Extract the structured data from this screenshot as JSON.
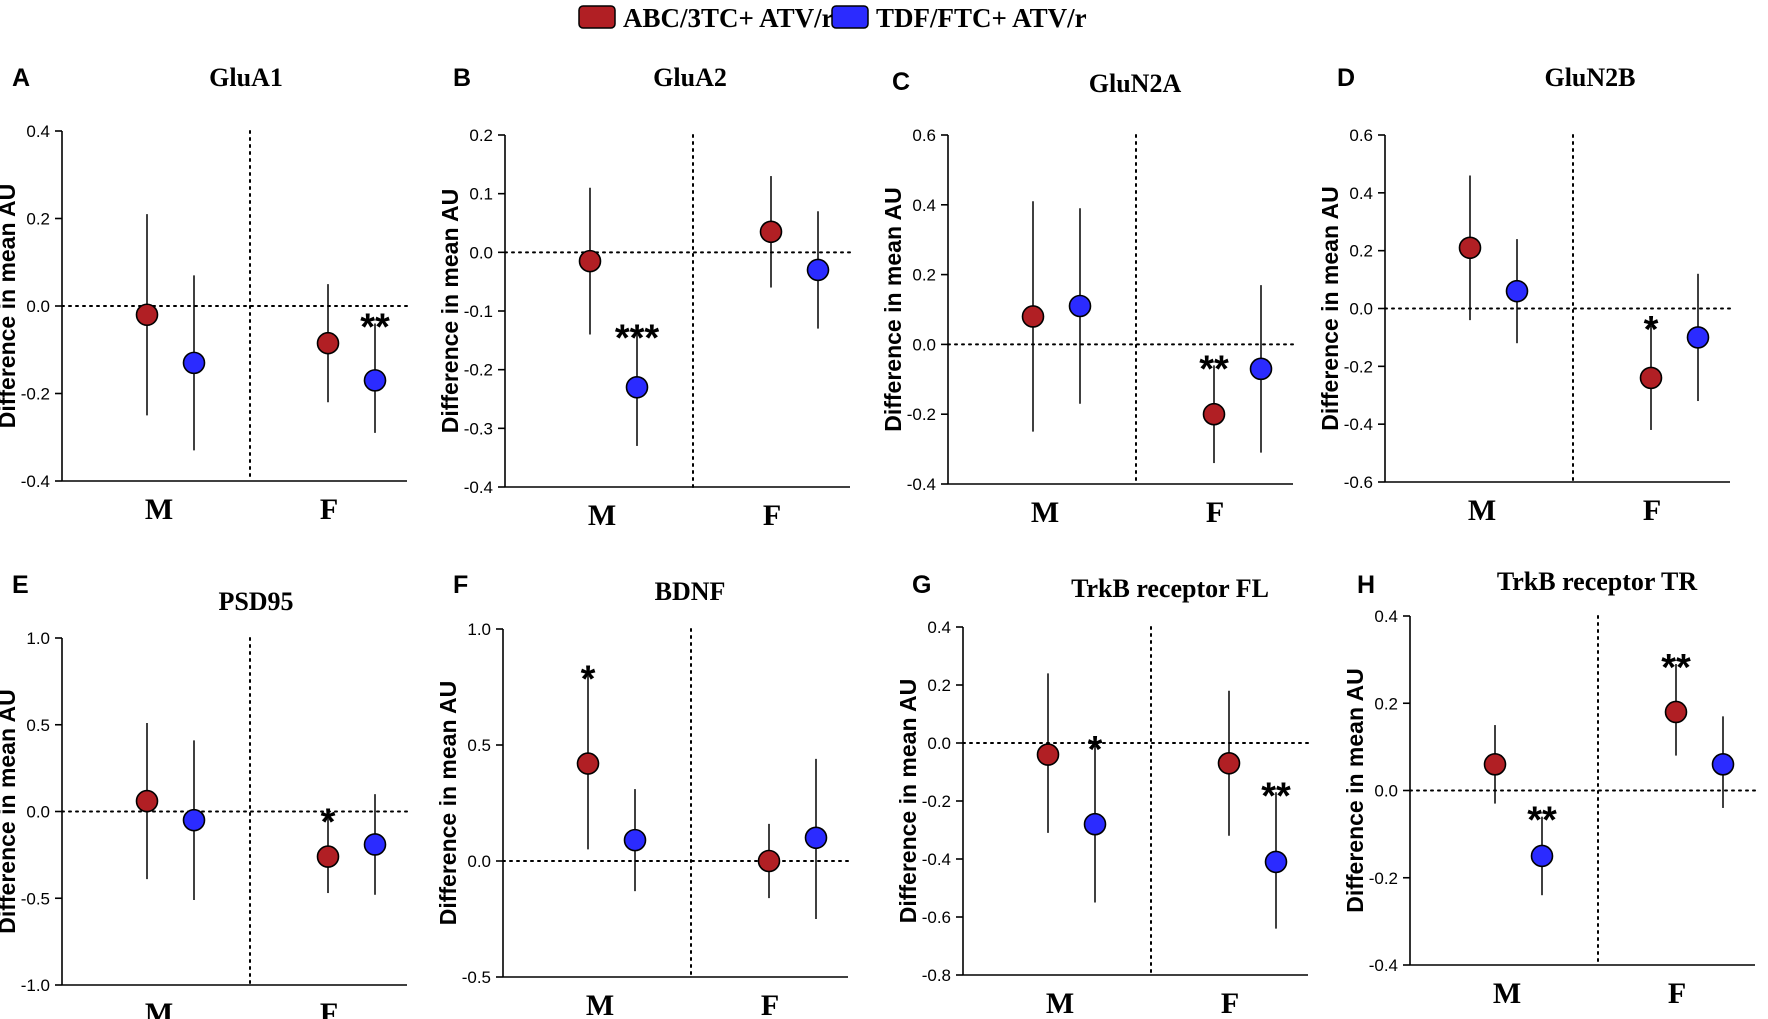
{
  "legend": [
    {
      "label": "ABC/3TC+ ATV/r",
      "color": "#b11f24"
    },
    {
      "label": "TDF/FTC+ ATV/r",
      "color": "#2b2bff"
    }
  ],
  "colors": {
    "red": "#b11f24",
    "blue": "#2b2bff"
  },
  "ylabel": "Difference in mean AU",
  "groups": [
    "M",
    "F"
  ],
  "chart_data": [
    {
      "type": "scatter",
      "letter": "A",
      "title": "GluA1",
      "ylim": [
        -0.4,
        0.4
      ],
      "ticks": [
        -0.4,
        -0.2,
        0.0,
        0.2,
        0.4
      ],
      "tick_labels": [
        "-0.4",
        "-0.2",
        "0.0",
        "0.2",
        "0.4"
      ],
      "points": [
        {
          "group": "M",
          "series": "ABC/3TC+ ATV/r",
          "mean": -0.02,
          "lo": -0.25,
          "hi": 0.21,
          "sig": ""
        },
        {
          "group": "M",
          "series": "TDF/FTC+ ATV/r",
          "mean": -0.13,
          "lo": -0.33,
          "hi": 0.07,
          "sig": ""
        },
        {
          "group": "F",
          "series": "ABC/3TC+ ATV/r",
          "mean": -0.085,
          "lo": -0.22,
          "hi": 0.05,
          "sig": ""
        },
        {
          "group": "F",
          "series": "TDF/FTC+ ATV/r",
          "mean": -0.17,
          "lo": -0.29,
          "hi": -0.04,
          "sig": "**"
        }
      ]
    },
    {
      "type": "scatter",
      "letter": "B",
      "title": "GluA2",
      "ylim": [
        -0.4,
        0.2
      ],
      "ticks": [
        -0.4,
        -0.3,
        -0.2,
        -0.1,
        0.0,
        0.1,
        0.2
      ],
      "tick_labels": [
        "-0.4",
        "-0.3",
        "-0.2",
        "-0.1",
        "0.0",
        "0.1",
        "0.2"
      ],
      "points": [
        {
          "group": "M",
          "series": "ABC/3TC+ ATV/r",
          "mean": -0.015,
          "lo": -0.14,
          "hi": 0.11,
          "sig": ""
        },
        {
          "group": "M",
          "series": "TDF/FTC+ ATV/r",
          "mean": -0.23,
          "lo": -0.33,
          "hi": -0.14,
          "sig": "***"
        },
        {
          "group": "F",
          "series": "ABC/3TC+ ATV/r",
          "mean": 0.035,
          "lo": -0.06,
          "hi": 0.13,
          "sig": ""
        },
        {
          "group": "F",
          "series": "TDF/FTC+ ATV/r",
          "mean": -0.03,
          "lo": -0.13,
          "hi": 0.07,
          "sig": ""
        }
      ]
    },
    {
      "type": "scatter",
      "letter": "C",
      "title": "GluN2A",
      "ylim": [
        -0.4,
        0.6
      ],
      "ticks": [
        -0.4,
        -0.2,
        0.0,
        0.2,
        0.4,
        0.6
      ],
      "tick_labels": [
        "-0.4",
        "-0.2",
        "0.0",
        "0.2",
        "0.4",
        "0.6"
      ],
      "points": [
        {
          "group": "M",
          "series": "ABC/3TC+ ATV/r",
          "mean": 0.08,
          "lo": -0.25,
          "hi": 0.41,
          "sig": ""
        },
        {
          "group": "M",
          "series": "TDF/FTC+ ATV/r",
          "mean": 0.11,
          "lo": -0.17,
          "hi": 0.39,
          "sig": ""
        },
        {
          "group": "F",
          "series": "ABC/3TC+ ATV/r",
          "mean": -0.2,
          "lo": -0.34,
          "hi": -0.06,
          "sig": "**"
        },
        {
          "group": "F",
          "series": "TDF/FTC+ ATV/r",
          "mean": -0.07,
          "lo": -0.31,
          "hi": 0.17,
          "sig": ""
        }
      ]
    },
    {
      "type": "scatter",
      "letter": "D",
      "title": "GluN2B",
      "ylim": [
        -0.6,
        0.6
      ],
      "ticks": [
        -0.6,
        -0.4,
        -0.2,
        0.0,
        0.2,
        0.4,
        0.6
      ],
      "tick_labels": [
        "-0.6",
        "-0.4",
        "-0.2",
        "0.0",
        "0.2",
        "0.4",
        "0.6"
      ],
      "points": [
        {
          "group": "M",
          "series": "ABC/3TC+ ATV/r",
          "mean": 0.21,
          "lo": -0.04,
          "hi": 0.46,
          "sig": ""
        },
        {
          "group": "M",
          "series": "TDF/FTC+ ATV/r",
          "mean": 0.06,
          "lo": -0.12,
          "hi": 0.24,
          "sig": ""
        },
        {
          "group": "F",
          "series": "ABC/3TC+ ATV/r",
          "mean": -0.24,
          "lo": -0.42,
          "hi": -0.06,
          "sig": "*"
        },
        {
          "group": "F",
          "series": "TDF/FTC+ ATV/r",
          "mean": -0.1,
          "lo": -0.32,
          "hi": 0.12,
          "sig": ""
        }
      ]
    },
    {
      "type": "scatter",
      "letter": "E",
      "title": "PSD95",
      "ylim": [
        -1.0,
        1.0
      ],
      "ticks": [
        -1.0,
        -0.5,
        0.0,
        0.5,
        1.0
      ],
      "tick_labels": [
        "-1.0",
        "-0.5",
        "0.0",
        "0.5",
        "1.0"
      ],
      "points": [
        {
          "group": "M",
          "series": "ABC/3TC+ ATV/r",
          "mean": 0.06,
          "lo": -0.39,
          "hi": 0.51,
          "sig": ""
        },
        {
          "group": "M",
          "series": "TDF/FTC+ ATV/r",
          "mean": -0.05,
          "lo": -0.51,
          "hi": 0.41,
          "sig": ""
        },
        {
          "group": "F",
          "series": "ABC/3TC+ ATV/r",
          "mean": -0.26,
          "lo": -0.47,
          "hi": -0.04,
          "sig": "*"
        },
        {
          "group": "F",
          "series": "TDF/FTC+ ATV/r",
          "mean": -0.19,
          "lo": -0.48,
          "hi": 0.1,
          "sig": ""
        }
      ]
    },
    {
      "type": "scatter",
      "letter": "F",
      "title": "BDNF",
      "ylim": [
        -0.5,
        1.0
      ],
      "ticks": [
        -0.5,
        0.0,
        0.5,
        1.0
      ],
      "tick_labels": [
        "-0.5",
        "0.0",
        "0.5",
        "1.0"
      ],
      "points": [
        {
          "group": "M",
          "series": "ABC/3TC+ ATV/r",
          "mean": 0.42,
          "lo": 0.05,
          "hi": 0.8,
          "sig": "*"
        },
        {
          "group": "M",
          "series": "TDF/FTC+ ATV/r",
          "mean": 0.09,
          "lo": -0.13,
          "hi": 0.31,
          "sig": ""
        },
        {
          "group": "F",
          "series": "ABC/3TC+ ATV/r",
          "mean": 0.0,
          "lo": -0.16,
          "hi": 0.16,
          "sig": ""
        },
        {
          "group": "F",
          "series": "TDF/FTC+ ATV/r",
          "mean": 0.1,
          "lo": -0.25,
          "hi": 0.44,
          "sig": ""
        }
      ]
    },
    {
      "type": "scatter",
      "letter": "G",
      "title": "TrkB receptor FL",
      "ylim": [
        -0.8,
        0.4
      ],
      "ticks": [
        -0.8,
        -0.6,
        -0.4,
        -0.2,
        0.0,
        0.2,
        0.4
      ],
      "tick_labels": [
        "-0.8",
        "-0.6",
        "-0.4",
        "-0.2",
        "0.0",
        "0.2",
        "0.4"
      ],
      "points": [
        {
          "group": "M",
          "series": "ABC/3TC+ ATV/r",
          "mean": -0.04,
          "lo": -0.31,
          "hi": 0.24,
          "sig": ""
        },
        {
          "group": "M",
          "series": "TDF/FTC+ ATV/r",
          "mean": -0.28,
          "lo": -0.55,
          "hi": -0.01,
          "sig": "*"
        },
        {
          "group": "F",
          "series": "ABC/3TC+ ATV/r",
          "mean": -0.07,
          "lo": -0.32,
          "hi": 0.18,
          "sig": ""
        },
        {
          "group": "F",
          "series": "TDF/FTC+ ATV/r",
          "mean": -0.41,
          "lo": -0.64,
          "hi": -0.17,
          "sig": "**"
        }
      ]
    },
    {
      "type": "scatter",
      "letter": "H",
      "title": "TrkB receptor TR",
      "ylim": [
        -0.4,
        0.4
      ],
      "ticks": [
        -0.4,
        -0.2,
        0.0,
        0.2,
        0.4
      ],
      "tick_labels": [
        "-0.4",
        "-0.2",
        "0.0",
        "0.2",
        "0.4"
      ],
      "points": [
        {
          "group": "M",
          "series": "ABC/3TC+ ATV/r",
          "mean": 0.06,
          "lo": -0.03,
          "hi": 0.15,
          "sig": ""
        },
        {
          "group": "M",
          "series": "TDF/FTC+ ATV/r",
          "mean": -0.15,
          "lo": -0.24,
          "hi": -0.06,
          "sig": "**"
        },
        {
          "group": "F",
          "series": "ABC/3TC+ ATV/r",
          "mean": 0.18,
          "lo": 0.08,
          "hi": 0.29,
          "sig": "**"
        },
        {
          "group": "F",
          "series": "TDF/FTC+ ATV/r",
          "mean": 0.06,
          "lo": -0.04,
          "hi": 0.17,
          "sig": ""
        }
      ]
    }
  ]
}
